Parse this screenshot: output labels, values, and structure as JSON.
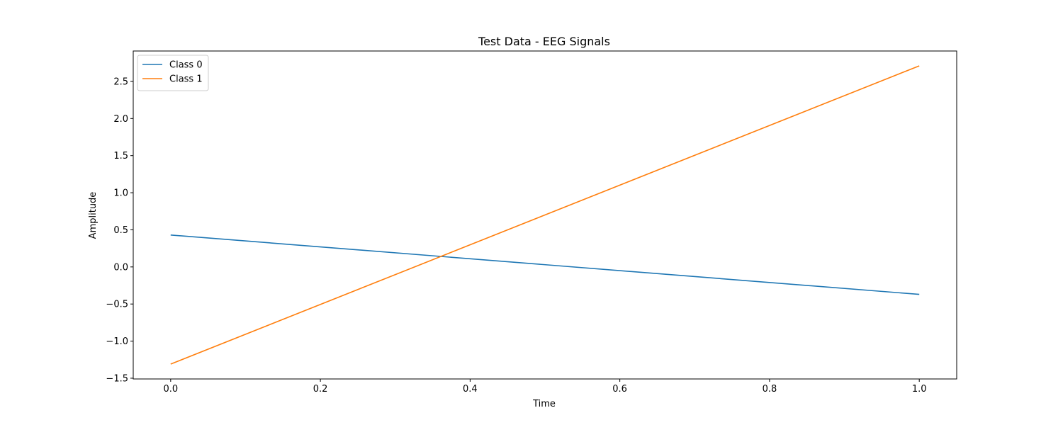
{
  "chart_data": {
    "type": "line",
    "title": "Test Data - EEG Signals",
    "xlabel": "Time",
    "ylabel": "Amplitude",
    "xlim": [
      -0.05,
      1.05
    ],
    "ylim": [
      -1.51,
      2.91
    ],
    "xticks": [
      0.0,
      0.2,
      0.4,
      0.6,
      0.8,
      1.0
    ],
    "xtick_labels": [
      "0.0",
      "0.2",
      "0.4",
      "0.6",
      "0.8",
      "1.0"
    ],
    "yticks": [
      -1.5,
      -1.0,
      -0.5,
      0.0,
      0.5,
      1.0,
      1.5,
      2.0,
      2.5
    ],
    "ytick_labels": [
      "−1.5",
      "−1.0",
      "−0.5",
      "0.0",
      "0.5",
      "1.0",
      "1.5",
      "2.0",
      "2.5"
    ],
    "grid": false,
    "legend_position": "top-left",
    "series": [
      {
        "name": "Class 0",
        "color": "#1f77b4",
        "x": [
          0.0,
          1.0
        ],
        "y": [
          0.43,
          -0.37
        ]
      },
      {
        "name": "Class 1",
        "color": "#ff7f0e",
        "x": [
          0.0,
          1.0
        ],
        "y": [
          -1.31,
          2.71
        ]
      }
    ]
  }
}
